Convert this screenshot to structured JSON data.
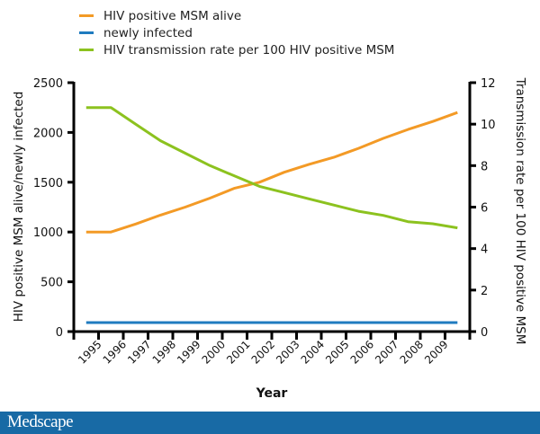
{
  "chart_data": {
    "type": "line",
    "xlabel": "Year",
    "ylabel_left": "HIV positive MSM alive/newly infected",
    "ylabel_right": "Transmission rate per 100 HIV positive MSM",
    "x_tick_labels": [
      "1995",
      "1996",
      "1997",
      "1998",
      "1999",
      "2000",
      "2001",
      "2002",
      "2003",
      "2004",
      "2005",
      "2006",
      "2007",
      "2008",
      "2009"
    ],
    "xlim": [
      1994,
      2010
    ],
    "x": [
      1994.5,
      1995.5,
      1996.5,
      1997.5,
      1998.5,
      1999.5,
      2000.5,
      2001.5,
      2002.5,
      2003.5,
      2004.5,
      2005.5,
      2006.5,
      2007.5,
      2008.5,
      2009.5
    ],
    "ylim_left": [
      0,
      2500
    ],
    "yticks_left": [
      "0",
      "500",
      "1000",
      "1500",
      "2000",
      "2500"
    ],
    "ylim_right": [
      0,
      12
    ],
    "yticks_right": [
      "0",
      "2",
      "4",
      "6",
      "8",
      "10",
      "12"
    ],
    "grid": false,
    "legend_position": "top-left",
    "series": [
      {
        "name": "HIV positive MSM alive",
        "axis": "left",
        "color": "#f39a26",
        "values": [
          1000,
          1000,
          1080,
          1170,
          1250,
          1340,
          1440,
          1500,
          1600,
          1680,
          1750,
          1840,
          1940,
          2030,
          2110,
          2200
        ]
      },
      {
        "name": "newly infected",
        "axis": "left",
        "color": "#1f7bbf",
        "values": [
          90,
          90,
          90,
          90,
          90,
          90,
          90,
          90,
          90,
          90,
          90,
          90,
          90,
          90,
          90,
          90
        ]
      },
      {
        "name": "HIV transmission rate per 100 HIV positive MSM",
        "axis": "right",
        "color": "#8cc21f",
        "values": [
          10.8,
          10.8,
          10.0,
          9.2,
          8.6,
          8.0,
          7.5,
          7.0,
          6.7,
          6.4,
          6.1,
          5.8,
          5.6,
          5.3,
          5.2,
          5.0
        ]
      }
    ]
  },
  "footer": {
    "logo": "Medscape",
    "color": "#186aa5"
  }
}
